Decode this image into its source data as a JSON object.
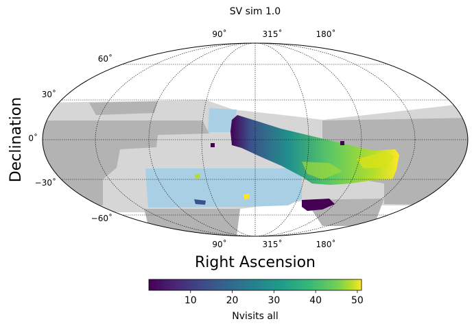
{
  "chart_data": {
    "type": "heatmap",
    "title": "SV sim 1.0",
    "projection": "mollweide",
    "xlabel": "Right Ascension",
    "ylabel": "Declination",
    "lon_tick_labels": [
      "90˚",
      "315˚",
      "180˚"
    ],
    "lat_tick_labels": [
      "60˚",
      "30˚",
      "0˚",
      "−30˚",
      "−60˚"
    ],
    "lat_grid_values": [
      60,
      30,
      0,
      -30,
      -60
    ],
    "colorbar": {
      "label": "Nvisits all",
      "colormap": "viridis",
      "range": [
        0,
        51
      ],
      "ticks": [
        "10",
        "20",
        "30",
        "40",
        "50"
      ],
      "tick_values": [
        10,
        20,
        30,
        40,
        50
      ]
    },
    "grid": true,
    "colors": {
      "footprint_dark_gray": "#b3b3b3",
      "footprint_light_gray": "#d6d6d6",
      "footprint_light_blue": "#a9cfe4",
      "viridis_low": "#440154",
      "viridis_mid": "#21918c",
      "viridis_high": "#fde725"
    }
  }
}
